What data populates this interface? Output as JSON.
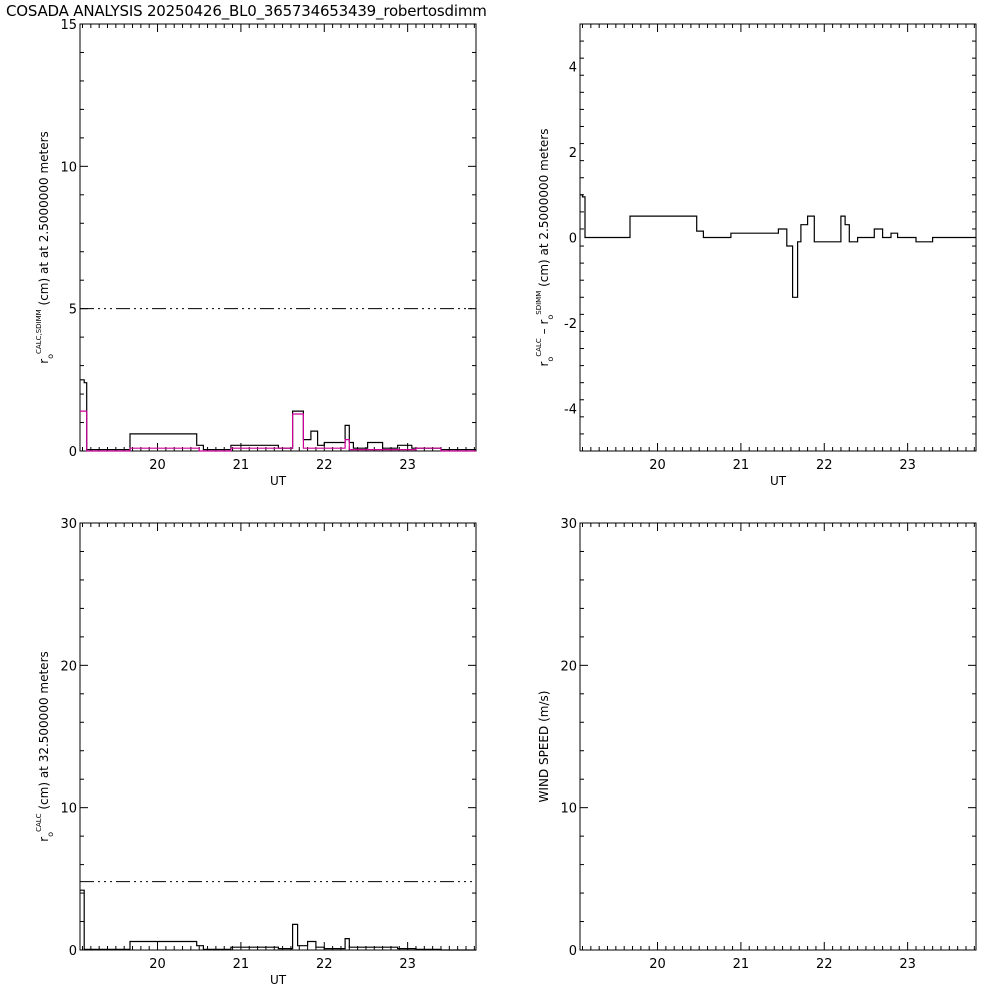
{
  "title": "COSADA ANALYSIS 20250426_BL0_365734653439_robertosdimm",
  "chart_data": [
    {
      "type": "line",
      "xlabel": "UT",
      "ylabel_parts": [
        "r",
        "o",
        "CALC,SDIMM",
        " (cm) at  at 2.5000000 meters"
      ],
      "xlim": [
        19.07,
        23.82
      ],
      "ylim": [
        0,
        15
      ],
      "xticks": [
        20,
        21,
        22,
        23
      ],
      "yticks": [
        0,
        5,
        10,
        15
      ],
      "reference_line": {
        "y": 5,
        "style": "dash-dot"
      },
      "series": [
        {
          "color": "#000000",
          "x": [
            19.07,
            19.12,
            19.12,
            19.15,
            19.15,
            19.67,
            19.67,
            20.47,
            20.47,
            20.55,
            20.55,
            20.88,
            20.88,
            21.45,
            21.45,
            21.62,
            21.62,
            21.75,
            21.75,
            21.84,
            21.84,
            21.92,
            21.92,
            22.0,
            22.0,
            22.25,
            22.25,
            22.3,
            22.3,
            22.35,
            22.35,
            22.52,
            22.52,
            22.7,
            22.7,
            22.88,
            22.88,
            23.05,
            23.05,
            23.4,
            23.4,
            23.82
          ],
          "y": [
            2.5,
            2.5,
            2.4,
            2.4,
            0.05,
            0.05,
            0.6,
            0.6,
            0.2,
            0.2,
            0.05,
            0.05,
            0.2,
            0.2,
            0.1,
            0.1,
            1.4,
            1.4,
            0.4,
            0.4,
            0.7,
            0.7,
            0.2,
            0.2,
            0.3,
            0.3,
            0.9,
            0.9,
            0.3,
            0.3,
            0.1,
            0.1,
            0.3,
            0.3,
            0.1,
            0.1,
            0.2,
            0.2,
            0.1,
            0.1,
            0.05,
            0.05
          ]
        },
        {
          "color": "#cc0099",
          "x": [
            19.07,
            19.15,
            19.15,
            19.67,
            19.67,
            20.5,
            20.5,
            20.88,
            20.88,
            21.62,
            21.62,
            21.75,
            21.75,
            22.25,
            22.25,
            22.3,
            22.3,
            23.1,
            23.1,
            23.4,
            23.4,
            23.82
          ],
          "y": [
            1.4,
            1.4,
            0.0,
            0.0,
            0.1,
            0.1,
            0.0,
            0.0,
            0.1,
            0.1,
            1.3,
            1.3,
            0.1,
            0.1,
            0.4,
            0.4,
            0.05,
            0.05,
            0.1,
            0.1,
            0.0,
            0.0
          ]
        }
      ]
    },
    {
      "type": "line",
      "xlabel": "UT",
      "ylabel_parts": [
        "r",
        "o",
        "CALC",
        "  – r",
        "o",
        "SDIMM",
        " (cm) at 2.5000000 meters"
      ],
      "xlim": [
        19.07,
        23.82
      ],
      "ylim": [
        -5,
        5
      ],
      "xticks": [
        20,
        21,
        22,
        23
      ],
      "yticks": [
        -4,
        -2,
        0,
        2,
        4
      ],
      "series": [
        {
          "color": "#000000",
          "x": [
            19.07,
            19.1,
            19.1,
            19.13,
            19.13,
            19.67,
            19.67,
            20.47,
            20.47,
            20.55,
            20.55,
            20.88,
            20.88,
            21.45,
            21.45,
            21.55,
            21.55,
            21.62,
            21.62,
            21.68,
            21.68,
            21.72,
            21.72,
            21.8,
            21.8,
            21.88,
            21.88,
            21.92,
            21.92,
            22.2,
            22.2,
            22.25,
            22.25,
            22.3,
            22.3,
            22.4,
            22.4,
            22.6,
            22.6,
            22.7,
            22.7,
            22.8,
            22.8,
            22.88,
            22.88,
            23.1,
            23.1,
            23.3,
            23.3,
            23.4,
            23.4,
            23.82
          ],
          "y": [
            1.0,
            1.0,
            0.95,
            0.95,
            0.0,
            0.0,
            0.5,
            0.5,
            0.15,
            0.15,
            0.0,
            0.0,
            0.1,
            0.1,
            0.2,
            0.2,
            -0.2,
            -0.2,
            -1.4,
            -1.4,
            -0.1,
            -0.1,
            0.3,
            0.3,
            0.5,
            0.5,
            -0.1,
            -0.1,
            -0.1,
            -0.1,
            0.5,
            0.5,
            0.3,
            0.3,
            -0.1,
            -0.1,
            0.0,
            0.0,
            0.2,
            0.2,
            0.0,
            0.0,
            0.1,
            0.1,
            0.0,
            0.0,
            -0.1,
            -0.1,
            0.0,
            0.0,
            0.0,
            0.0
          ]
        }
      ]
    },
    {
      "type": "line",
      "xlabel": "UT",
      "ylabel_parts": [
        "r",
        "o",
        "CALC",
        " (cm) at 32.500000 meters"
      ],
      "xlim": [
        19.07,
        23.82
      ],
      "ylim": [
        0,
        30
      ],
      "xticks": [
        20,
        21,
        22,
        23
      ],
      "yticks": [
        0,
        10,
        20,
        30
      ],
      "reference_line": {
        "y": 4.8,
        "style": "dash-dot"
      },
      "series": [
        {
          "color": "#000000",
          "x": [
            19.07,
            19.12,
            19.12,
            19.67,
            19.67,
            20.47,
            20.47,
            20.55,
            20.55,
            20.88,
            20.88,
            21.45,
            21.45,
            21.62,
            21.62,
            21.68,
            21.68,
            21.8,
            21.8,
            21.9,
            21.9,
            22.0,
            22.0,
            22.25,
            22.25,
            22.3,
            22.3,
            22.55,
            22.55,
            22.88,
            22.88,
            23.1,
            23.1,
            23.4,
            23.4,
            23.82
          ],
          "y": [
            4.2,
            4.2,
            0.05,
            0.05,
            0.6,
            0.6,
            0.3,
            0.3,
            0.05,
            0.05,
            0.2,
            0.2,
            0.1,
            0.1,
            1.8,
            1.8,
            0.3,
            0.3,
            0.6,
            0.6,
            0.2,
            0.2,
            0.1,
            0.1,
            0.8,
            0.8,
            0.2,
            0.2,
            0.2,
            0.2,
            0.1,
            0.1,
            0.05,
            0.05,
            0.0,
            0.0
          ]
        }
      ]
    },
    {
      "type": "line",
      "xlabel": "",
      "ylabel_parts": [
        "WIND SPEED (m/s)"
      ],
      "xlim": [
        19.07,
        23.82
      ],
      "ylim": [
        0,
        30
      ],
      "xticks": [
        20,
        21,
        22,
        23
      ],
      "yticks": [
        0,
        10,
        20,
        30
      ],
      "series": []
    }
  ]
}
